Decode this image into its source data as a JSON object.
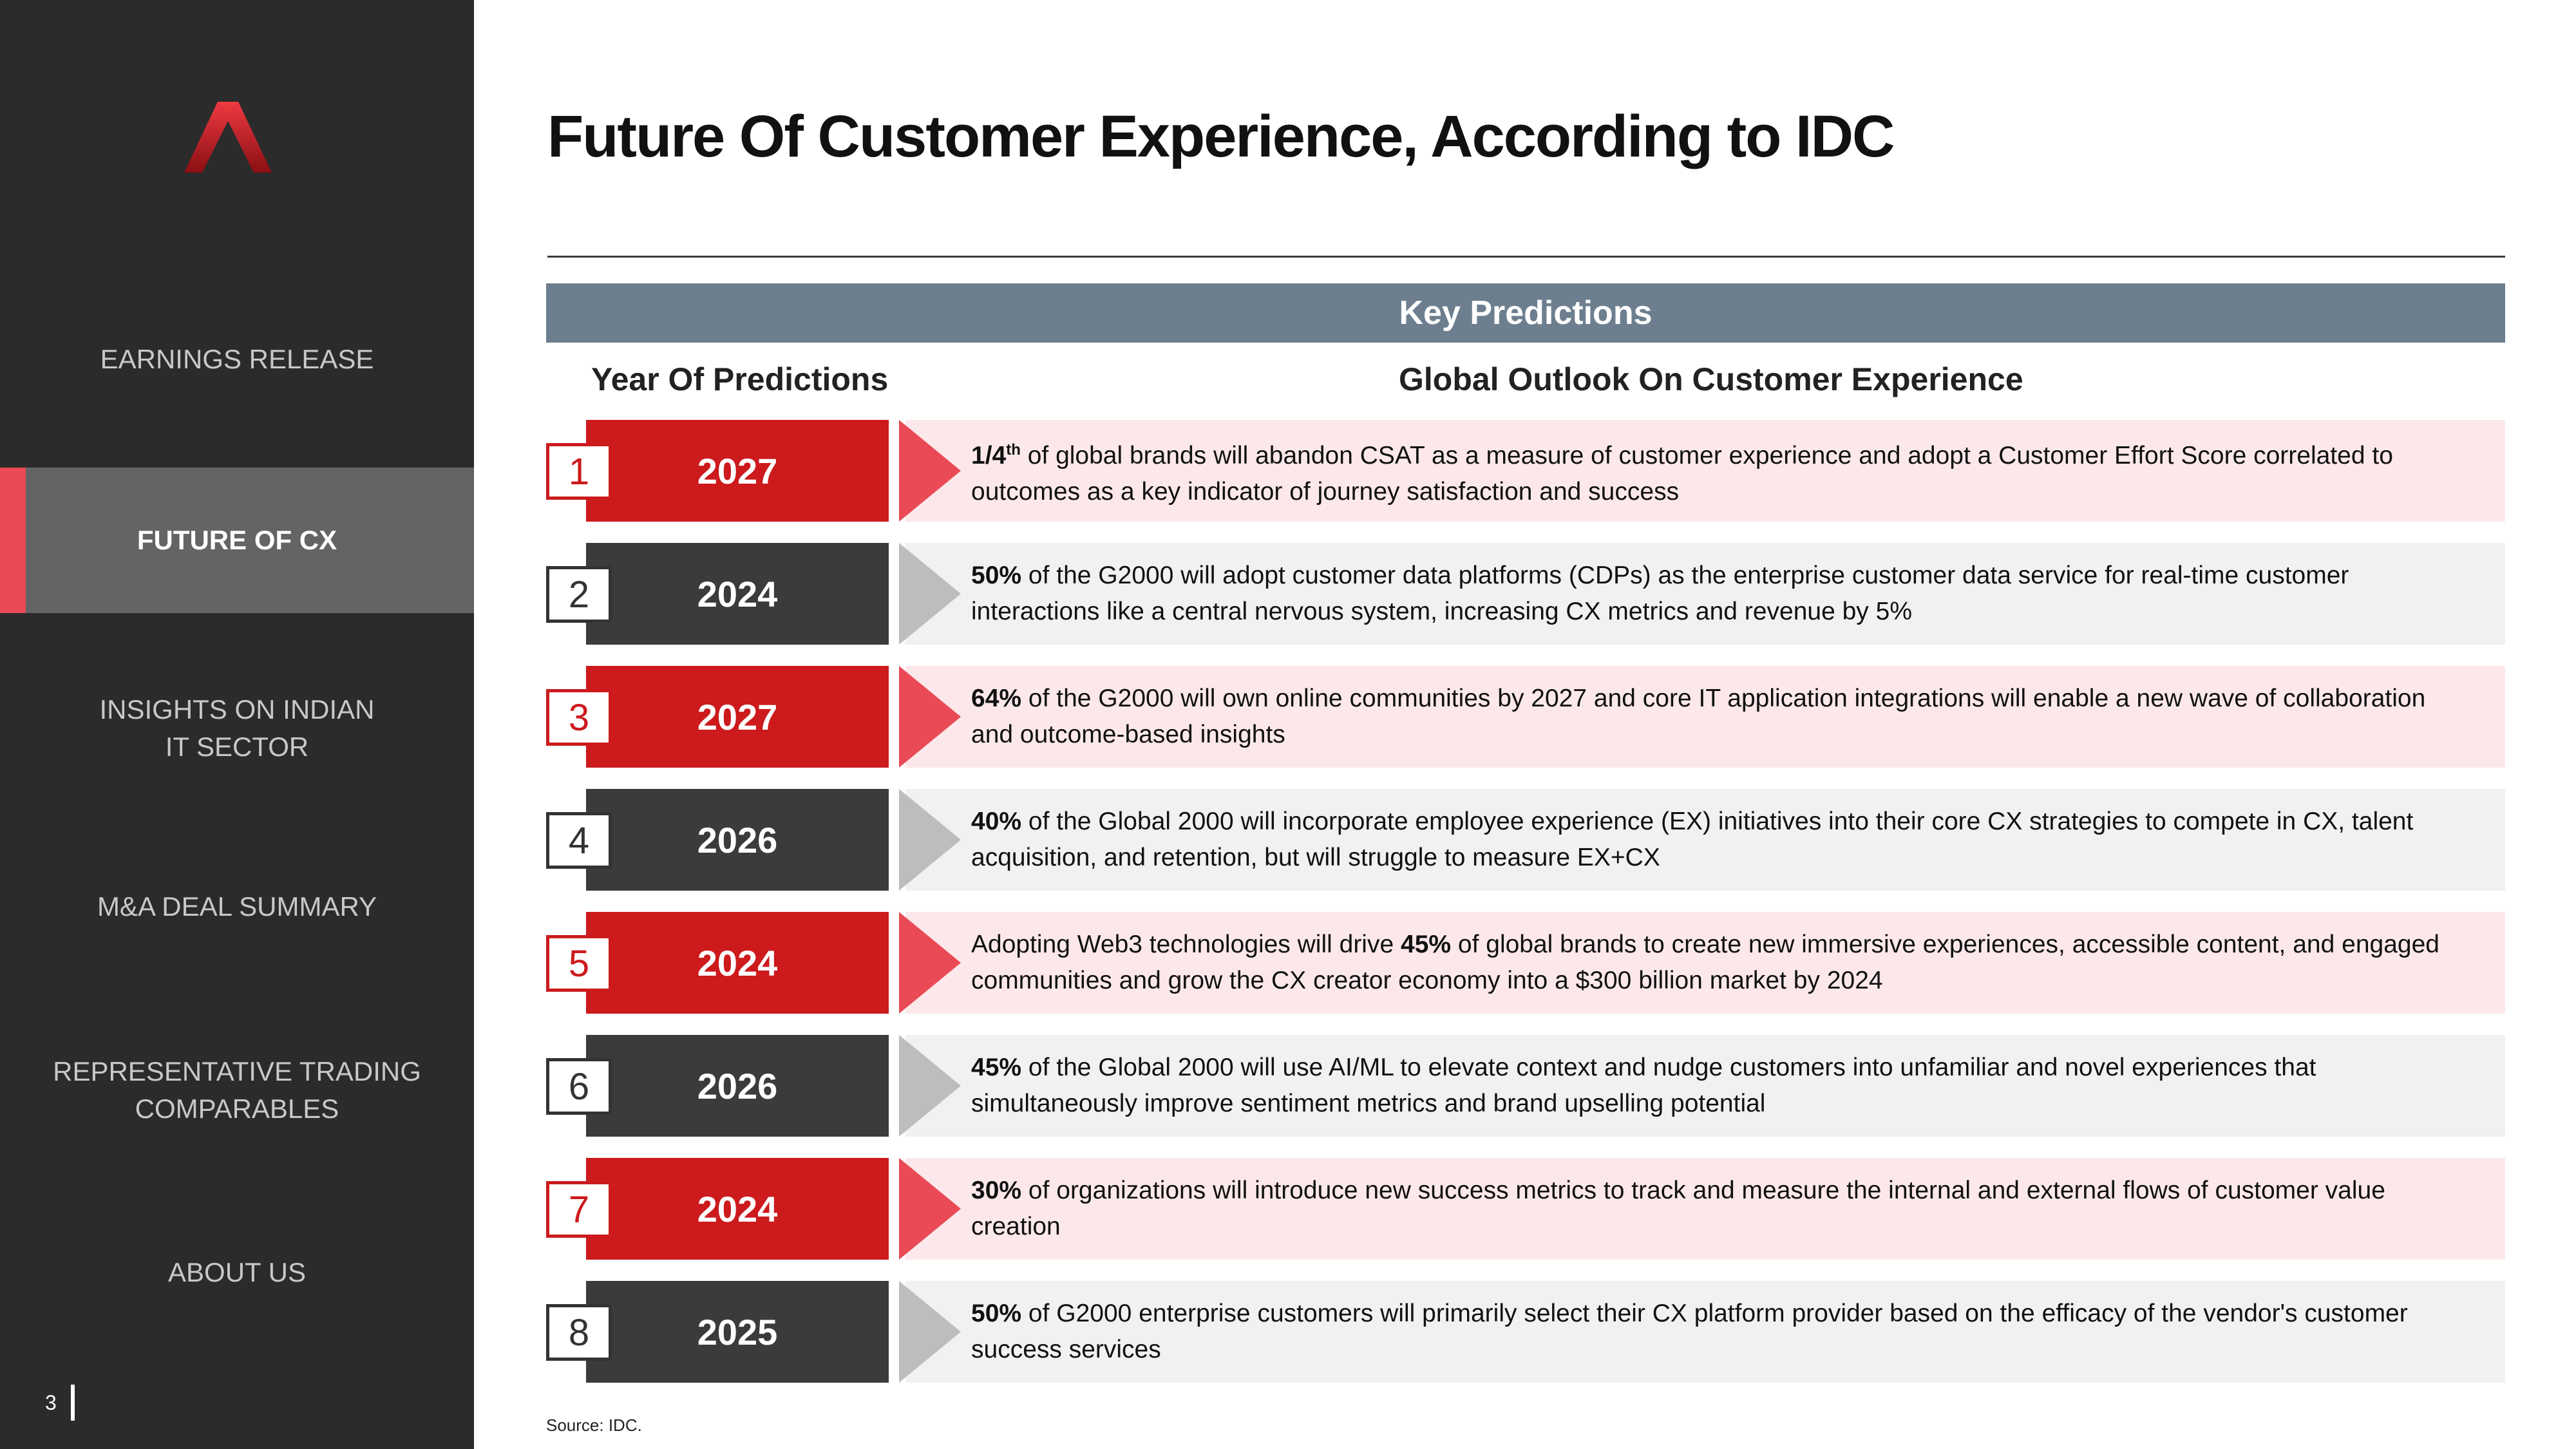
{
  "colors": {
    "sidebar": "#2b2b2b",
    "active_item": "#646464",
    "accent": "#e94a55",
    "red": "#cc1a1d",
    "dark": "#3b3b3b",
    "key_bar": "#6d7f8f"
  },
  "sidebar": {
    "logo": "red-a-logo",
    "items": [
      {
        "label": "EARNINGS RELEASE"
      },
      {
        "label": "FUTURE OF CX"
      },
      {
        "label": "INSIGHTS ON INDIAN IT SECTOR"
      },
      {
        "label": "M&A DEAL SUMMARY"
      },
      {
        "label": "REPRESENTATIVE TRADING COMPARABLES"
      },
      {
        "label": "ABOUT US"
      }
    ],
    "page_number": "3"
  },
  "main": {
    "title": "Future Of Customer Experience, According to IDC",
    "key_header": "Key Predictions",
    "col_year": "Year Of Predictions",
    "col_outlook": "Global Outlook On Customer Experience",
    "rows": [
      {
        "num": "1",
        "year": "2027",
        "pre": "",
        "bold": "1/4",
        "sup": "th",
        "post": " of global brands will abandon CSAT as a measure of customer experience and adopt a Customer Effort Score correlated to outcomes as a key indicator of journey satisfaction and success"
      },
      {
        "num": "2",
        "year": "2024",
        "pre": "",
        "bold": "50%",
        "sup": "",
        "post": " of the G2000 will adopt customer data platforms (CDPs) as the enterprise customer data service for real-time customer interactions like a central nervous system, increasing CX metrics and revenue by 5%"
      },
      {
        "num": "3",
        "year": "2027",
        "pre": "",
        "bold": "64%",
        "sup": "",
        "post": " of the G2000 will own online communities by 2027 and core IT application integrations will enable a new wave of collaboration and outcome-based insights"
      },
      {
        "num": "4",
        "year": "2026",
        "pre": "",
        "bold": "40%",
        "sup": "",
        "post": " of the Global 2000 will incorporate employee experience (EX) initiatives into their core CX strategies to compete in CX, talent acquisition, and retention, but will struggle to measure EX+CX"
      },
      {
        "num": "5",
        "year": "2024",
        "pre": "Adopting Web3 technologies will drive ",
        "bold": "45%",
        "sup": "",
        "post": " of global brands to create new immersive experiences, accessible content, and engaged communities and grow the CX creator economy into a $300 billion market by 2024"
      },
      {
        "num": "6",
        "year": "2026",
        "pre": "",
        "bold": "45%",
        "sup": "",
        "post": " of the Global 2000 will use AI/ML to elevate context and nudge customers into unfamiliar and novel experiences that simultaneously improve sentiment metrics and brand upselling potential"
      },
      {
        "num": "7",
        "year": "2024",
        "pre": "",
        "bold": "30%",
        "sup": "",
        "post": " of organizations will introduce new success metrics to track and measure the internal and external flows of customer value creation"
      },
      {
        "num": "8",
        "year": "2025",
        "pre": "",
        "bold": "50%",
        "sup": "",
        "post": " of G2000 enterprise customers will primarily select their CX platform provider based on the efficacy of the vendor's customer success services"
      }
    ],
    "source": "Source: IDC."
  }
}
